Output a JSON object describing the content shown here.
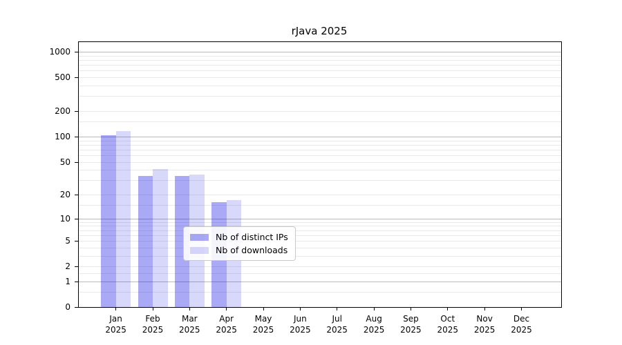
{
  "title": "rJava 2025",
  "colors": {
    "bar_distinct_ips": "#a9a9f5",
    "bar_downloads": "#d9d9fa",
    "bar_distinct_ips_fill": "rgba(10,10,225,0.35)",
    "bar_downloads_fill": "rgba(10,10,225,0.16)",
    "major_gridline": "#b9b9b9",
    "minor_gridline": "#e9e9e9"
  },
  "chart_data": {
    "type": "bar",
    "title": "rJava 2025",
    "xlabel": "",
    "ylabel": "",
    "yscale": "log1p",
    "ylim": [
      0,
      1300
    ],
    "grid": true,
    "legend_position": "lower center",
    "x_tick_labels": [
      [
        "Jan",
        "2025"
      ],
      [
        "Feb",
        "2025"
      ],
      [
        "Mar",
        "2025"
      ],
      [
        "Apr",
        "2025"
      ],
      [
        "May",
        "2025"
      ],
      [
        "Jun",
        "2025"
      ],
      [
        "Jul",
        "2025"
      ],
      [
        "Aug",
        "2025"
      ],
      [
        "Sep",
        "2025"
      ],
      [
        "Oct",
        "2025"
      ],
      [
        "Nov",
        "2025"
      ],
      [
        "Dec",
        "2025"
      ]
    ],
    "categories": [
      "Jan 2025",
      "Feb 2025",
      "Mar 2025",
      "Apr 2025",
      "May 2025",
      "Jun 2025",
      "Jul 2025",
      "Aug 2025",
      "Sep 2025",
      "Oct 2025",
      "Nov 2025",
      "Dec 2025"
    ],
    "y_ticks": [
      0,
      1,
      2,
      5,
      10,
      20,
      50,
      100,
      200,
      500,
      1000
    ],
    "y_major_gridlines": [
      1,
      10,
      100,
      1000
    ],
    "y_minor_gridlines": [
      0.5,
      1.5,
      2,
      3,
      4,
      5,
      6,
      7,
      8,
      9,
      15,
      20,
      30,
      40,
      50,
      60,
      70,
      80,
      90,
      150,
      200,
      300,
      400,
      500,
      600,
      700,
      800,
      900
    ],
    "series": [
      {
        "name": "Nb of distinct IPs",
        "color": "#a9a9f5",
        "fill": "rgba(10,10,225,0.35)",
        "values": [
          103,
          34,
          34,
          16,
          0,
          0,
          0,
          0,
          0,
          0,
          0,
          0
        ]
      },
      {
        "name": "Nb of downloads",
        "color": "#d9d9fa",
        "fill": "rgba(10,10,225,0.16)",
        "values": [
          116,
          41,
          35,
          17,
          0,
          0,
          0,
          0,
          0,
          0,
          0,
          0
        ]
      }
    ]
  }
}
